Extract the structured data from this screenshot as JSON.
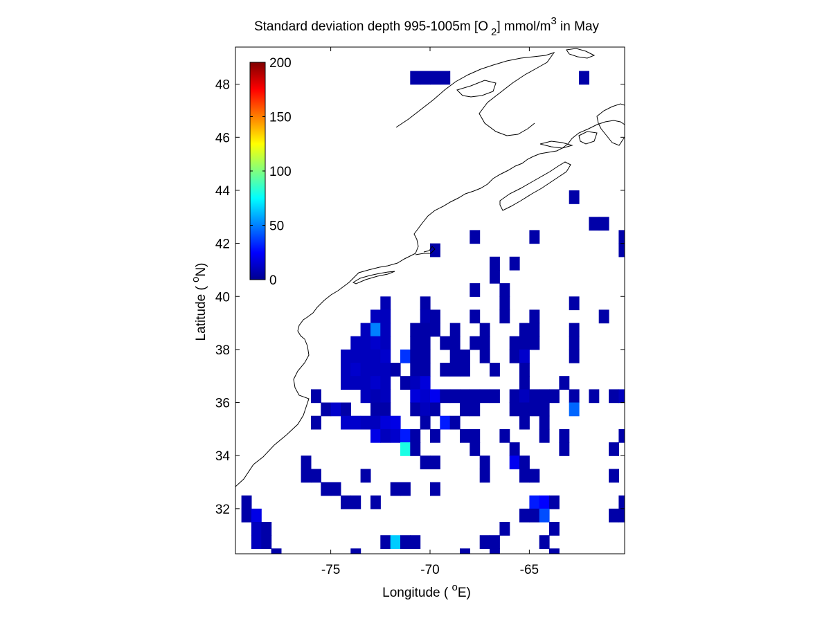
{
  "chart_data": {
    "type": "heatmap",
    "title": {
      "prefix": "Standard deviation depth 995-1005m [O",
      "subscript": "2",
      "middle": "] mmol/m",
      "superscript": "3",
      "suffix": " in May"
    },
    "xlabel": {
      "prefix": "Longitude ( ",
      "degree": "o",
      "suffix": "E)"
    },
    "ylabel": {
      "prefix": "Latitude ( ",
      "degree": "o",
      "suffix": "N)"
    },
    "xlim": [
      -79.8,
      -60.2
    ],
    "ylim": [
      30.3,
      49.4
    ],
    "xticks": [
      -75,
      -70,
      -65
    ],
    "xtick_labels": [
      "-75",
      "-70",
      "-65"
    ],
    "yticks": [
      32,
      34,
      36,
      38,
      40,
      42,
      44,
      46,
      48
    ],
    "ytick_labels": [
      "32",
      "34",
      "36",
      "38",
      "40",
      "42",
      "44",
      "46",
      "48"
    ],
    "colorbar": {
      "colormap": "jet",
      "range": [
        0,
        200
      ],
      "ticks": [
        0,
        50,
        100,
        150,
        200
      ],
      "tick_labels": [
        "0",
        "50",
        "100",
        "150",
        "200"
      ],
      "placement": "upper-left inside axes"
    },
    "grid": false,
    "cell_size_deg": [
      0.5,
      0.5
    ],
    "cells": [
      {
        "lon": -70.75,
        "lat": 48.25,
        "value": 8
      },
      {
        "lon": -70.25,
        "lat": 48.25,
        "value": 8
      },
      {
        "lon": -69.75,
        "lat": 48.25,
        "value": 8
      },
      {
        "lon": -69.25,
        "lat": 48.25,
        "value": 8
      },
      {
        "lon": -62.25,
        "lat": 48.25,
        "value": 8
      },
      {
        "lon": -62.75,
        "lat": 43.75,
        "value": 8
      },
      {
        "lon": -61.75,
        "lat": 42.75,
        "value": 8
      },
      {
        "lon": -61.25,
        "lat": 42.75,
        "value": 8
      },
      {
        "lon": -67.75,
        "lat": 42.25,
        "value": 8
      },
      {
        "lon": -64.75,
        "lat": 42.25,
        "value": 8
      },
      {
        "lon": -60.25,
        "lat": 42.25,
        "value": 8
      },
      {
        "lon": -69.75,
        "lat": 41.75,
        "value": 8
      },
      {
        "lon": -60.25,
        "lat": 41.75,
        "value": 8
      },
      {
        "lon": -66.75,
        "lat": 41.25,
        "value": 8
      },
      {
        "lon": -65.75,
        "lat": 41.25,
        "value": 8
      },
      {
        "lon": -66.75,
        "lat": 40.75,
        "value": 8
      },
      {
        "lon": -67.75,
        "lat": 40.25,
        "value": 8
      },
      {
        "lon": -66.25,
        "lat": 40.25,
        "value": 8
      },
      {
        "lon": -72.25,
        "lat": 39.75,
        "value": 10
      },
      {
        "lon": -70.25,
        "lat": 39.75,
        "value": 8
      },
      {
        "lon": -66.25,
        "lat": 39.75,
        "value": 8
      },
      {
        "lon": -62.75,
        "lat": 39.75,
        "value": 8
      },
      {
        "lon": -72.75,
        "lat": 39.25,
        "value": 12
      },
      {
        "lon": -72.25,
        "lat": 39.25,
        "value": 12
      },
      {
        "lon": -70.25,
        "lat": 39.25,
        "value": 10
      },
      {
        "lon": -69.75,
        "lat": 39.25,
        "value": 8
      },
      {
        "lon": -67.75,
        "lat": 39.25,
        "value": 8
      },
      {
        "lon": -66.25,
        "lat": 39.25,
        "value": 8
      },
      {
        "lon": -64.75,
        "lat": 39.25,
        "value": 8
      },
      {
        "lon": -61.25,
        "lat": 39.25,
        "value": 8
      },
      {
        "lon": -73.25,
        "lat": 38.75,
        "value": 12
      },
      {
        "lon": -72.75,
        "lat": 38.75,
        "value": 50
      },
      {
        "lon": -72.25,
        "lat": 38.75,
        "value": 12
      },
      {
        "lon": -70.75,
        "lat": 38.75,
        "value": 8
      },
      {
        "lon": -70.25,
        "lat": 38.75,
        "value": 8
      },
      {
        "lon": -69.75,
        "lat": 38.75,
        "value": 8
      },
      {
        "lon": -68.75,
        "lat": 38.75,
        "value": 8
      },
      {
        "lon": -67.25,
        "lat": 38.75,
        "value": 8
      },
      {
        "lon": -65.25,
        "lat": 38.75,
        "value": 8
      },
      {
        "lon": -64.75,
        "lat": 38.75,
        "value": 8
      },
      {
        "lon": -62.75,
        "lat": 38.75,
        "value": 8
      },
      {
        "lon": -73.75,
        "lat": 38.25,
        "value": 12
      },
      {
        "lon": -73.25,
        "lat": 38.25,
        "value": 12
      },
      {
        "lon": -72.75,
        "lat": 38.25,
        "value": 15
      },
      {
        "lon": -72.25,
        "lat": 38.25,
        "value": 12
      },
      {
        "lon": -70.75,
        "lat": 38.25,
        "value": 8
      },
      {
        "lon": -70.25,
        "lat": 38.25,
        "value": 8
      },
      {
        "lon": -69.25,
        "lat": 38.25,
        "value": 8
      },
      {
        "lon": -68.75,
        "lat": 38.25,
        "value": 8
      },
      {
        "lon": -67.75,
        "lat": 38.25,
        "value": 8
      },
      {
        "lon": -67.25,
        "lat": 38.25,
        "value": 8
      },
      {
        "lon": -65.75,
        "lat": 38.25,
        "value": 8
      },
      {
        "lon": -65.25,
        "lat": 38.25,
        "value": 8
      },
      {
        "lon": -64.75,
        "lat": 38.25,
        "value": 8
      },
      {
        "lon": -62.75,
        "lat": 38.25,
        "value": 8
      },
      {
        "lon": -74.25,
        "lat": 37.75,
        "value": 12
      },
      {
        "lon": -73.75,
        "lat": 37.75,
        "value": 12
      },
      {
        "lon": -73.25,
        "lat": 37.75,
        "value": 12
      },
      {
        "lon": -72.75,
        "lat": 37.75,
        "value": 12
      },
      {
        "lon": -72.25,
        "lat": 37.75,
        "value": 15
      },
      {
        "lon": -71.25,
        "lat": 37.75,
        "value": 35
      },
      {
        "lon": -70.75,
        "lat": 37.75,
        "value": 8
      },
      {
        "lon": -70.25,
        "lat": 37.75,
        "value": 8
      },
      {
        "lon": -68.75,
        "lat": 37.75,
        "value": 8
      },
      {
        "lon": -68.25,
        "lat": 37.75,
        "value": 8
      },
      {
        "lon": -67.25,
        "lat": 37.75,
        "value": 8
      },
      {
        "lon": -65.75,
        "lat": 37.75,
        "value": 8
      },
      {
        "lon": -65.25,
        "lat": 37.75,
        "value": 15
      },
      {
        "lon": -62.75,
        "lat": 37.75,
        "value": 8
      },
      {
        "lon": -74.25,
        "lat": 37.25,
        "value": 12
      },
      {
        "lon": -73.75,
        "lat": 37.25,
        "value": 15
      },
      {
        "lon": -73.25,
        "lat": 37.25,
        "value": 12
      },
      {
        "lon": -72.75,
        "lat": 37.25,
        "value": 12
      },
      {
        "lon": -72.25,
        "lat": 37.25,
        "value": 12
      },
      {
        "lon": -71.75,
        "lat": 37.25,
        "value": 8
      },
      {
        "lon": -70.75,
        "lat": 37.25,
        "value": 8
      },
      {
        "lon": -70.25,
        "lat": 37.25,
        "value": 8
      },
      {
        "lon": -69.25,
        "lat": 37.25,
        "value": 8
      },
      {
        "lon": -68.75,
        "lat": 37.25,
        "value": 8
      },
      {
        "lon": -68.25,
        "lat": 37.25,
        "value": 8
      },
      {
        "lon": -66.75,
        "lat": 37.25,
        "value": 8
      },
      {
        "lon": -65.25,
        "lat": 37.25,
        "value": 8
      },
      {
        "lon": -74.25,
        "lat": 36.75,
        "value": 12
      },
      {
        "lon": -73.75,
        "lat": 36.75,
        "value": 12
      },
      {
        "lon": -73.25,
        "lat": 36.75,
        "value": 12
      },
      {
        "lon": -72.75,
        "lat": 36.75,
        "value": 15
      },
      {
        "lon": -72.25,
        "lat": 36.75,
        "value": 12
      },
      {
        "lon": -71.25,
        "lat": 36.75,
        "value": 8
      },
      {
        "lon": -70.75,
        "lat": 36.75,
        "value": 12
      },
      {
        "lon": -70.25,
        "lat": 36.75,
        "value": 18
      },
      {
        "lon": -65.25,
        "lat": 36.75,
        "value": 8
      },
      {
        "lon": -63.25,
        "lat": 36.75,
        "value": 8
      },
      {
        "lon": -75.75,
        "lat": 36.25,
        "value": 8
      },
      {
        "lon": -73.25,
        "lat": 36.25,
        "value": 12
      },
      {
        "lon": -72.75,
        "lat": 36.25,
        "value": 10
      },
      {
        "lon": -72.25,
        "lat": 36.25,
        "value": 12
      },
      {
        "lon": -70.75,
        "lat": 36.25,
        "value": 18
      },
      {
        "lon": -70.25,
        "lat": 36.25,
        "value": 15
      },
      {
        "lon": -69.75,
        "lat": 36.25,
        "value": 22
      },
      {
        "lon": -69.25,
        "lat": 36.25,
        "value": 8
      },
      {
        "lon": -68.75,
        "lat": 36.25,
        "value": 8
      },
      {
        "lon": -68.25,
        "lat": 36.25,
        "value": 8
      },
      {
        "lon": -67.75,
        "lat": 36.25,
        "value": 8
      },
      {
        "lon": -67.25,
        "lat": 36.25,
        "value": 8
      },
      {
        "lon": -66.75,
        "lat": 36.25,
        "value": 8
      },
      {
        "lon": -65.75,
        "lat": 36.25,
        "value": 8
      },
      {
        "lon": -65.25,
        "lat": 36.25,
        "value": 12
      },
      {
        "lon": -64.75,
        "lat": 36.25,
        "value": 8
      },
      {
        "lon": -64.25,
        "lat": 36.25,
        "value": 8
      },
      {
        "lon": -63.75,
        "lat": 36.25,
        "value": 8
      },
      {
        "lon": -62.75,
        "lat": 36.25,
        "value": 8
      },
      {
        "lon": -61.75,
        "lat": 36.25,
        "value": 8
      },
      {
        "lon": -60.75,
        "lat": 36.25,
        "value": 8
      },
      {
        "lon": -60.25,
        "lat": 36.25,
        "value": 12
      },
      {
        "lon": -75.25,
        "lat": 35.75,
        "value": 8
      },
      {
        "lon": -74.75,
        "lat": 35.75,
        "value": 15
      },
      {
        "lon": -74.25,
        "lat": 35.75,
        "value": 8
      },
      {
        "lon": -72.75,
        "lat": 35.75,
        "value": 8
      },
      {
        "lon": -72.25,
        "lat": 35.75,
        "value": 8
      },
      {
        "lon": -70.75,
        "lat": 35.75,
        "value": 8
      },
      {
        "lon": -70.25,
        "lat": 35.75,
        "value": 12
      },
      {
        "lon": -69.75,
        "lat": 35.75,
        "value": 8
      },
      {
        "lon": -68.25,
        "lat": 35.75,
        "value": 8
      },
      {
        "lon": -67.75,
        "lat": 35.75,
        "value": 8
      },
      {
        "lon": -65.75,
        "lat": 35.75,
        "value": 8
      },
      {
        "lon": -65.25,
        "lat": 35.75,
        "value": 8
      },
      {
        "lon": -64.75,
        "lat": 35.75,
        "value": 8
      },
      {
        "lon": -64.25,
        "lat": 35.75,
        "value": 8
      },
      {
        "lon": -62.75,
        "lat": 35.75,
        "value": 45
      },
      {
        "lon": -75.75,
        "lat": 35.25,
        "value": 8
      },
      {
        "lon": -74.25,
        "lat": 35.25,
        "value": 15
      },
      {
        "lon": -73.75,
        "lat": 35.25,
        "value": 15
      },
      {
        "lon": -73.25,
        "lat": 35.25,
        "value": 12
      },
      {
        "lon": -72.75,
        "lat": 35.25,
        "value": 12
      },
      {
        "lon": -72.25,
        "lat": 35.25,
        "value": 18
      },
      {
        "lon": -71.75,
        "lat": 35.25,
        "value": 20
      },
      {
        "lon": -70.25,
        "lat": 35.25,
        "value": 8
      },
      {
        "lon": -69.25,
        "lat": 35.25,
        "value": 30
      },
      {
        "lon": -68.75,
        "lat": 35.25,
        "value": 8
      },
      {
        "lon": -65.25,
        "lat": 35.25,
        "value": 8
      },
      {
        "lon": -64.25,
        "lat": 35.25,
        "value": 8
      },
      {
        "lon": -72.75,
        "lat": 34.75,
        "value": 20
      },
      {
        "lon": -72.25,
        "lat": 34.75,
        "value": 12
      },
      {
        "lon": -71.75,
        "lat": 34.75,
        "value": 15
      },
      {
        "lon": -71.25,
        "lat": 34.75,
        "value": 30
      },
      {
        "lon": -70.75,
        "lat": 34.75,
        "value": 8
      },
      {
        "lon": -69.75,
        "lat": 34.75,
        "value": 8
      },
      {
        "lon": -68.25,
        "lat": 34.75,
        "value": 8
      },
      {
        "lon": -67.75,
        "lat": 34.75,
        "value": 8
      },
      {
        "lon": -66.25,
        "lat": 34.75,
        "value": 8
      },
      {
        "lon": -64.25,
        "lat": 34.75,
        "value": 8
      },
      {
        "lon": -63.25,
        "lat": 34.75,
        "value": 8
      },
      {
        "lon": -60.25,
        "lat": 34.75,
        "value": 8
      },
      {
        "lon": -71.25,
        "lat": 34.25,
        "value": 80
      },
      {
        "lon": -70.75,
        "lat": 34.25,
        "value": 8
      },
      {
        "lon": -67.75,
        "lat": 34.25,
        "value": 8
      },
      {
        "lon": -65.75,
        "lat": 34.25,
        "value": 8
      },
      {
        "lon": -63.25,
        "lat": 34.25,
        "value": 8
      },
      {
        "lon": -60.75,
        "lat": 34.25,
        "value": 8
      },
      {
        "lon": -76.25,
        "lat": 33.75,
        "value": 8
      },
      {
        "lon": -70.25,
        "lat": 33.75,
        "value": 8
      },
      {
        "lon": -69.75,
        "lat": 33.75,
        "value": 8
      },
      {
        "lon": -67.25,
        "lat": 33.75,
        "value": 8
      },
      {
        "lon": -65.75,
        "lat": 33.75,
        "value": 22
      },
      {
        "lon": -65.25,
        "lat": 33.75,
        "value": 8
      },
      {
        "lon": -76.25,
        "lat": 33.25,
        "value": 8
      },
      {
        "lon": -75.75,
        "lat": 33.25,
        "value": 8
      },
      {
        "lon": -73.25,
        "lat": 33.25,
        "value": 8
      },
      {
        "lon": -67.25,
        "lat": 33.25,
        "value": 8
      },
      {
        "lon": -65.25,
        "lat": 33.25,
        "value": 8
      },
      {
        "lon": -64.75,
        "lat": 33.25,
        "value": 8
      },
      {
        "lon": -60.75,
        "lat": 33.25,
        "value": 8
      },
      {
        "lon": -75.25,
        "lat": 32.75,
        "value": 8
      },
      {
        "lon": -74.75,
        "lat": 32.75,
        "value": 8
      },
      {
        "lon": -71.75,
        "lat": 32.75,
        "value": 8
      },
      {
        "lon": -71.25,
        "lat": 32.75,
        "value": 8
      },
      {
        "lon": -69.75,
        "lat": 32.75,
        "value": 8
      },
      {
        "lon": -79.25,
        "lat": 32.25,
        "value": 8
      },
      {
        "lon": -74.25,
        "lat": 32.25,
        "value": 8
      },
      {
        "lon": -73.75,
        "lat": 32.25,
        "value": 8
      },
      {
        "lon": -72.75,
        "lat": 32.25,
        "value": 8
      },
      {
        "lon": -64.75,
        "lat": 32.25,
        "value": 30
      },
      {
        "lon": -64.25,
        "lat": 32.25,
        "value": 25
      },
      {
        "lon": -63.75,
        "lat": 32.25,
        "value": 8
      },
      {
        "lon": -60.25,
        "lat": 32.25,
        "value": 8
      },
      {
        "lon": -79.25,
        "lat": 31.75,
        "value": 8
      },
      {
        "lon": -78.75,
        "lat": 31.75,
        "value": 20
      },
      {
        "lon": -65.25,
        "lat": 31.75,
        "value": 8
      },
      {
        "lon": -64.75,
        "lat": 31.75,
        "value": 8
      },
      {
        "lon": -64.25,
        "lat": 31.75,
        "value": 40
      },
      {
        "lon": -60.75,
        "lat": 31.75,
        "value": 8
      },
      {
        "lon": -60.25,
        "lat": 31.75,
        "value": 8
      },
      {
        "lon": -78.75,
        "lat": 31.25,
        "value": 12
      },
      {
        "lon": -78.25,
        "lat": 31.25,
        "value": 8
      },
      {
        "lon": -66.25,
        "lat": 31.25,
        "value": 8
      },
      {
        "lon": -63.75,
        "lat": 31.25,
        "value": 8
      },
      {
        "lon": -78.75,
        "lat": 30.75,
        "value": 12
      },
      {
        "lon": -78.25,
        "lat": 30.75,
        "value": 8
      },
      {
        "lon": -72.25,
        "lat": 30.75,
        "value": 8
      },
      {
        "lon": -71.75,
        "lat": 30.75,
        "value": 65
      },
      {
        "lon": -71.25,
        "lat": 30.75,
        "value": 8
      },
      {
        "lon": -70.75,
        "lat": 30.75,
        "value": 8
      },
      {
        "lon": -67.25,
        "lat": 30.75,
        "value": 8
      },
      {
        "lon": -66.75,
        "lat": 30.75,
        "value": 8
      },
      {
        "lon": -64.25,
        "lat": 30.75,
        "value": 8
      },
      {
        "lon": -77.75,
        "lat": 30.25,
        "value": 8
      },
      {
        "lon": -73.75,
        "lat": 30.25,
        "value": 8
      },
      {
        "lon": -68.25,
        "lat": 30.25,
        "value": 8
      },
      {
        "lon": -66.75,
        "lat": 30.25,
        "value": 8
      },
      {
        "lon": -63.75,
        "lat": 30.25,
        "value": 8
      }
    ]
  }
}
